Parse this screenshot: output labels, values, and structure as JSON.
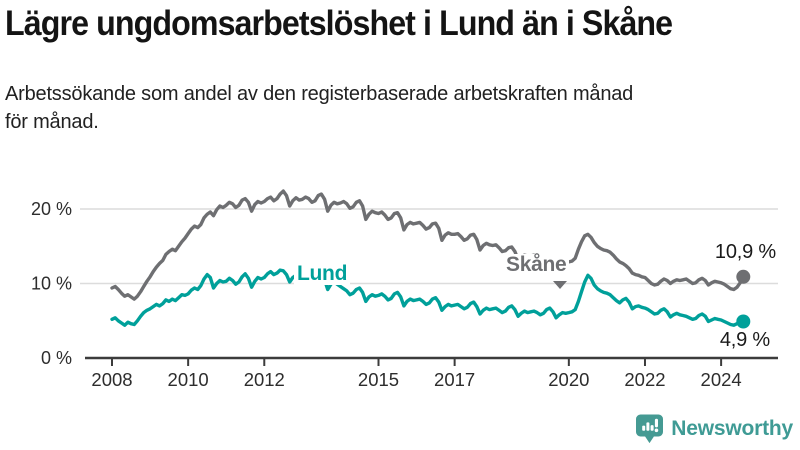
{
  "header": {
    "title": "Lägre ungdomsarbetslöshet i Lund än i Skåne",
    "subtitle_line1": "Arbetssökande som andel av den registerbaserade arbetskraften månad",
    "subtitle_line2": "för månad."
  },
  "chart_data": {
    "type": "line",
    "unit": "%",
    "frequency": "monthly",
    "x_start": "2008-01",
    "x_end": "2024-08",
    "ylim": [
      0,
      24
    ],
    "grid": "horizontal",
    "legend_position": "inline-labels",
    "y_ticks": [
      {
        "label": "0 %",
        "value": 0
      },
      {
        "label": "10 %",
        "value": 10
      },
      {
        "label": "20 %",
        "value": 20
      }
    ],
    "x_tick_labels": [
      "2008",
      "2010",
      "2012",
      "2015",
      "2017",
      "2020",
      "2022",
      "2024"
    ],
    "series": [
      {
        "name": "Skåne",
        "color": "#6e6f72",
        "end_label": "10,9 %",
        "end_value": 10.9,
        "values": [
          9.4,
          9.6,
          9.2,
          8.7,
          8.3,
          8.5,
          8.2,
          7.9,
          8.3,
          8.9,
          9.6,
          10.3,
          10.9,
          11.6,
          12.2,
          12.7,
          13.1,
          13.9,
          14.3,
          14.6,
          14.4,
          15.0,
          15.6,
          16.1,
          16.7,
          17.3,
          17.7,
          17.5,
          17.9,
          18.8,
          19.3,
          19.6,
          19.1,
          19.9,
          20.4,
          20.2,
          20.5,
          20.9,
          20.7,
          20.2,
          20.5,
          21.2,
          21.4,
          20.9,
          19.7,
          20.6,
          21.0,
          20.8,
          21.0,
          21.4,
          21.6,
          21.1,
          21.4,
          22.0,
          22.4,
          21.8,
          20.4,
          21.1,
          21.5,
          21.2,
          21.3,
          21.6,
          21.4,
          20.9,
          21.1,
          21.8,
          22.0,
          21.3,
          19.7,
          20.5,
          20.9,
          20.7,
          20.8,
          21.0,
          20.7,
          20.1,
          20.3,
          20.9,
          21.1,
          20.4,
          18.6,
          19.3,
          19.7,
          19.5,
          19.4,
          19.6,
          19.2,
          18.6,
          18.8,
          19.4,
          19.5,
          18.8,
          17.2,
          17.9,
          18.2,
          18.0,
          18.1,
          18.2,
          17.8,
          17.3,
          17.5,
          18.0,
          18.1,
          17.4,
          15.8,
          16.5,
          16.8,
          16.6,
          16.6,
          16.7,
          16.3,
          15.8,
          16.0,
          16.5,
          16.6,
          15.9,
          14.5,
          15.1,
          15.4,
          15.2,
          15.1,
          15.2,
          14.8,
          14.3,
          14.4,
          14.8,
          14.9,
          14.3,
          13.2,
          13.6,
          13.8,
          13.7,
          13.7,
          13.8,
          13.5,
          13.1,
          13.2,
          13.6,
          13.7,
          13.2,
          12.3,
          12.7,
          12.9,
          12.8,
          12.9,
          13.0,
          13.4,
          14.6,
          15.6,
          16.4,
          16.6,
          16.2,
          15.5,
          15.0,
          14.7,
          14.5,
          14.4,
          14.2,
          13.8,
          13.3,
          12.9,
          12.7,
          12.4,
          12.0,
          11.4,
          11.2,
          11.1,
          10.9,
          10.8,
          10.4,
          10.0,
          9.8,
          9.9,
          10.3,
          10.6,
          10.4,
          10.0,
          10.3,
          10.5,
          10.4,
          10.5,
          10.6,
          10.3,
          10.0,
          10.1,
          10.5,
          10.7,
          10.4,
          9.8,
          10.1,
          10.3,
          10.2,
          10.1,
          9.9,
          9.6,
          9.3,
          9.2,
          9.5,
          10.1,
          10.9
        ]
      },
      {
        "name": "Lund",
        "color": "#00a09a",
        "end_label": "4,9 %",
        "end_value": 4.9,
        "values": [
          5.2,
          5.4,
          5.0,
          4.7,
          4.4,
          4.8,
          4.6,
          4.5,
          5.0,
          5.6,
          6.1,
          6.4,
          6.6,
          6.9,
          7.2,
          7.0,
          7.3,
          7.8,
          7.6,
          7.9,
          7.7,
          8.1,
          8.5,
          8.4,
          8.6,
          9.1,
          9.4,
          9.2,
          9.7,
          10.6,
          11.2,
          10.8,
          9.4,
          10.0,
          10.4,
          10.2,
          10.3,
          10.7,
          10.4,
          9.9,
          10.2,
          10.9,
          11.3,
          10.7,
          9.5,
          10.3,
          10.8,
          10.6,
          10.8,
          11.3,
          11.6,
          11.2,
          11.4,
          11.8,
          11.7,
          11.2,
          10.2,
          10.8,
          11.1,
          10.9,
          10.4,
          10.8,
          10.6,
          10.1,
          10.4,
          11.0,
          11.2,
          10.5,
          9.2,
          9.9,
          10.2,
          9.9,
          9.6,
          9.3,
          9.0,
          8.5,
          8.7,
          9.2,
          9.4,
          8.8,
          7.6,
          8.2,
          8.5,
          8.3,
          8.4,
          8.6,
          8.3,
          7.8,
          8.0,
          8.6,
          8.8,
          8.2,
          7.0,
          7.6,
          7.9,
          7.7,
          7.8,
          7.9,
          7.6,
          7.2,
          7.4,
          7.9,
          8.1,
          7.5,
          6.4,
          6.9,
          7.2,
          7.0,
          7.1,
          7.2,
          6.9,
          6.6,
          6.8,
          7.3,
          7.5,
          6.9,
          5.9,
          6.4,
          6.7,
          6.5,
          6.6,
          6.7,
          6.4,
          6.1,
          6.3,
          6.8,
          7.0,
          6.5,
          5.6,
          6.0,
          6.3,
          6.1,
          6.2,
          6.3,
          6.1,
          5.8,
          6.0,
          6.5,
          6.7,
          6.2,
          5.4,
          5.8,
          6.1,
          6.0,
          6.1,
          6.2,
          6.5,
          7.6,
          8.9,
          10.2,
          11.1,
          10.7,
          9.8,
          9.3,
          9.0,
          8.8,
          8.7,
          8.5,
          8.1,
          7.7,
          7.4,
          7.8,
          8.0,
          7.5,
          6.6,
          6.9,
          7.0,
          6.8,
          6.7,
          6.5,
          6.2,
          5.9,
          6.0,
          6.4,
          6.6,
          6.2,
          5.5,
          5.8,
          6.0,
          5.8,
          5.7,
          5.6,
          5.4,
          5.2,
          5.3,
          5.7,
          5.9,
          5.6,
          4.9,
          5.1,
          5.3,
          5.2,
          5.1,
          4.9,
          4.7,
          4.5,
          4.4,
          4.6,
          4.7,
          4.9
        ]
      }
    ],
    "style": {
      "grid_color": "#dcdcdc",
      "axis_color": "#3c3c3c",
      "tick_text_color": "#2d2d2d"
    }
  },
  "footer": {
    "brand": "Newsworthy",
    "logo_color": "#459a93"
  }
}
